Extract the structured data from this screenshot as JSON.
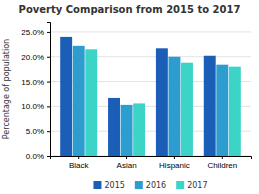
{
  "chart_data": {
    "type": "bar",
    "title": "Poverty Comparison from 2015 to 2017",
    "categories": [
      "Black",
      "Asian",
      "Hispanic",
      "Children"
    ],
    "series": [
      {
        "name": "2015",
        "color": "#1B5EB8",
        "values": [
          24.0,
          11.7,
          21.7,
          20.2
        ]
      },
      {
        "name": "2016",
        "color": "#2D9DD0",
        "values": [
          22.2,
          10.3,
          20.0,
          18.4
        ]
      },
      {
        "name": "2017",
        "color": "#3DD4C8",
        "values": [
          21.5,
          10.6,
          18.8,
          18.0
        ]
      }
    ],
    "ylabel": "Percentage of population",
    "ylim": [
      0,
      27
    ],
    "yticks": [
      {
        "value": 0,
        "label": "0.0%"
      },
      {
        "value": 5,
        "label": "5.0%"
      },
      {
        "value": 10,
        "label": "10.0%"
      },
      {
        "value": 15,
        "label": "15.0%"
      },
      {
        "value": 20,
        "label": "20.0%"
      },
      {
        "value": 25,
        "label": "25.0%"
      }
    ],
    "grid": true,
    "legend": "bottom"
  }
}
